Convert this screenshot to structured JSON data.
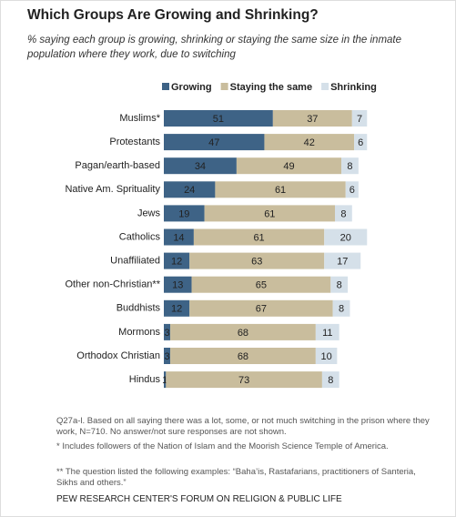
{
  "chart_data": {
    "type": "stacked-bar-horizontal",
    "title": "Which Groups Are Growing and Shrinking?",
    "subtitle": "% saying each group is growing, shrinking or staying the same size in the inmate population where they work, due to switching",
    "categories": [
      "Muslims*",
      "Protestants",
      "Pagan/earth-based",
      "Native Am. Sprituality",
      "Jews",
      "Catholics",
      "Unaffiliated",
      "Other non-Christian**",
      "Buddhists",
      "Mormons",
      "Orthodox Christian",
      "Hindus"
    ],
    "series": [
      {
        "name": "Growing",
        "color": "#3e6386",
        "values": [
          51,
          47,
          34,
          24,
          19,
          14,
          12,
          13,
          12,
          3,
          3,
          1
        ]
      },
      {
        "name": "Staying the same",
        "color": "#c9bd9d",
        "values": [
          37,
          42,
          49,
          61,
          61,
          61,
          63,
          65,
          67,
          68,
          68,
          73
        ]
      },
      {
        "name": "Shrinking",
        "color": "#d5e0e9",
        "values": [
          7,
          6,
          8,
          6,
          8,
          20,
          17,
          8,
          8,
          11,
          10,
          8
        ]
      }
    ],
    "notes": [
      "Q27a-l. Based on all saying there was a lot, some, or not much switching in the prison where they work, N=710. No answer/not sure responses are not shown.",
      "* Includes followers of the Nation of Islam and the Moorish Science Temple of America.",
      "** The question listed the following examples: “Baha’is, Rastafarians, practitioners of Santeria, Sikhs and others.”"
    ],
    "source": "PEW RESEARCH CENTER'S FORUM ON RELIGION & PUBLIC LIFE"
  }
}
